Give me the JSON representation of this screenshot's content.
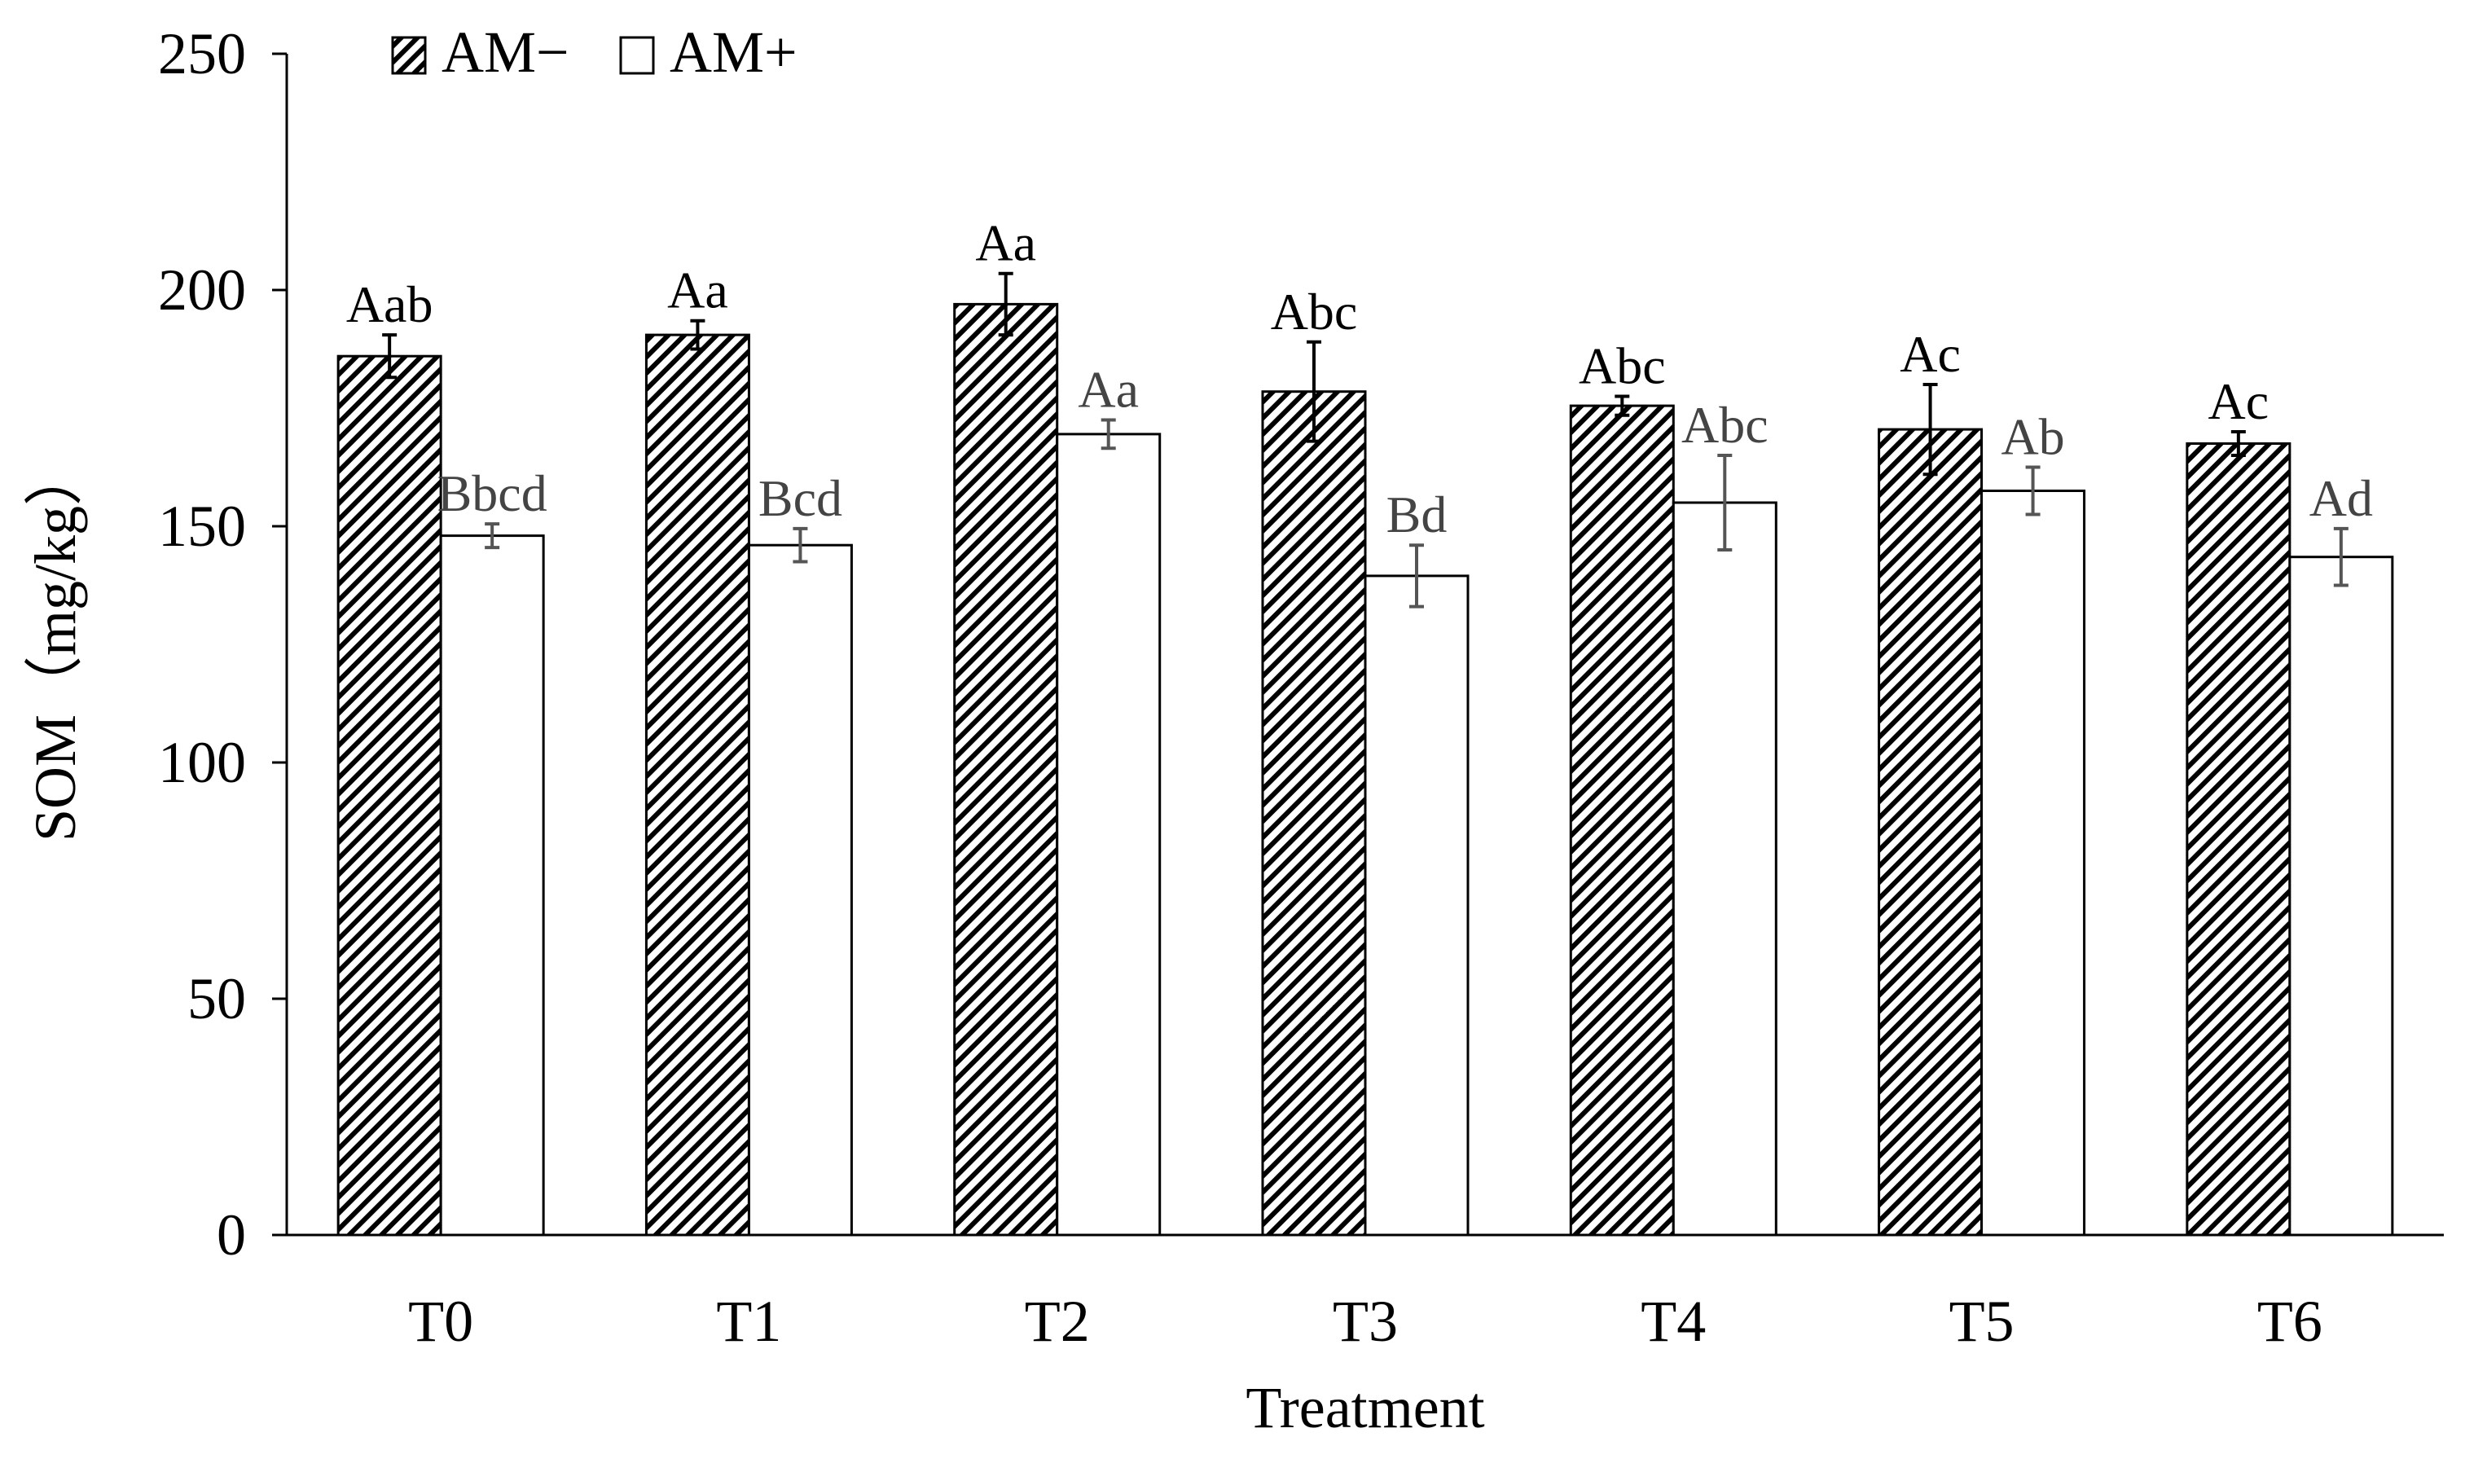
{
  "chart_data": {
    "type": "bar",
    "title": "",
    "xlabel": "Treatment",
    "ylabel": "SOM（mg/kg）",
    "ylim": [
      0,
      250
    ],
    "yticks": [
      0,
      50,
      100,
      150,
      200,
      250
    ],
    "categories": [
      "T0",
      "T1",
      "T2",
      "T3",
      "T4",
      "T5",
      "T6"
    ],
    "legend": {
      "position": "top-left"
    },
    "series": [
      {
        "name": "AM−",
        "pattern": "diagonal-hatch",
        "values": [
          186,
          190.5,
          197,
          178.5,
          175.5,
          170.5,
          167.5
        ],
        "errors": [
          4.5,
          3,
          6.5,
          10.5,
          2,
          9.5,
          2.5
        ],
        "labels": [
          "Aab",
          "Aa",
          "Aa",
          "Abc",
          "Abc",
          "Ac",
          "Ac"
        ],
        "color": "#000000"
      },
      {
        "name": "AM+",
        "pattern": "none",
        "values": [
          148,
          146,
          169.5,
          139.5,
          155,
          157.5,
          143.5
        ],
        "errors": [
          2.5,
          3.5,
          3,
          6.5,
          10,
          5,
          6
        ],
        "labels": [
          "Bbcd",
          "Bcd",
          "Aa",
          "Bd",
          "Abc",
          "Ab",
          "Ad"
        ],
        "color": "#444444"
      }
    ]
  }
}
